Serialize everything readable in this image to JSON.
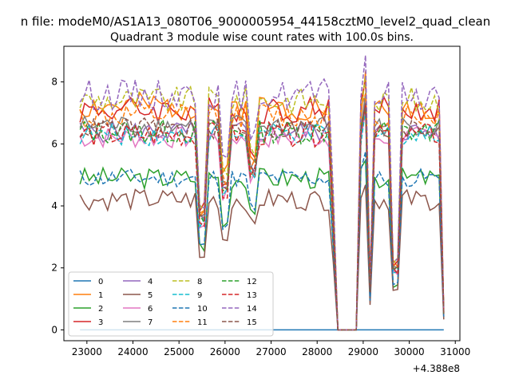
{
  "chart_data": {
    "type": "line",
    "suptitle": "n file: modeM0/AS1A13_080T06_9000005954_44158cztM0_level2_quad_clean",
    "title": "Quadrant 3 module wise count rates with 100.0s bins.",
    "xlabel": "",
    "ylabel": "",
    "offset_text": "+4.388e8",
    "xlim": [
      22500,
      31100
    ],
    "ylim": [
      -0.35,
      9.15
    ],
    "xticks": [
      23000,
      24000,
      25000,
      26000,
      27000,
      28000,
      29000,
      30000,
      31000
    ],
    "yticks": [
      0,
      2,
      4,
      6,
      8
    ],
    "xtick_labels": [
      "23000",
      "24000",
      "25000",
      "26000",
      "27000",
      "28000",
      "29000",
      "30000",
      "31000"
    ],
    "ytick_labels": [
      "0",
      "2",
      "4",
      "6",
      "8"
    ],
    "legend_position": "lower-left",
    "legend_columns": 4,
    "bin_start": 22850,
    "bin_width": 100,
    "series": [
      {
        "name": "0",
        "color": "#1f77b4",
        "style": "solid",
        "level": 0.0,
        "amp": 0.0,
        "seed": 1
      },
      {
        "name": "1",
        "color": "#ff7f0e",
        "style": "solid",
        "level": 7.2,
        "amp": 0.45,
        "seed": 2
      },
      {
        "name": "2",
        "color": "#2ca02c",
        "style": "solid",
        "level": 4.9,
        "amp": 0.35,
        "seed": 3
      },
      {
        "name": "3",
        "color": "#d62728",
        "style": "solid",
        "level": 7.1,
        "amp": 0.45,
        "seed": 4
      },
      {
        "name": "4",
        "color": "#9467bd",
        "style": "solid",
        "level": 6.4,
        "amp": 0.35,
        "seed": 5
      },
      {
        "name": "5",
        "color": "#8c564b",
        "style": "solid",
        "level": 4.2,
        "amp": 0.35,
        "seed": 6
      },
      {
        "name": "6",
        "color": "#e377c2",
        "style": "solid",
        "level": 6.2,
        "amp": 0.35,
        "seed": 7
      },
      {
        "name": "7",
        "color": "#7f7f7f",
        "style": "solid",
        "level": 6.6,
        "amp": 0.35,
        "seed": 8
      },
      {
        "name": "8",
        "color": "#bcbd22",
        "style": "dashed",
        "level": 7.4,
        "amp": 0.45,
        "seed": 9
      },
      {
        "name": "9",
        "color": "#17becf",
        "style": "dashed",
        "level": 6.3,
        "amp": 0.35,
        "seed": 10
      },
      {
        "name": "10",
        "color": "#1f77b4",
        "style": "dashed",
        "level": 4.9,
        "amp": 0.3,
        "seed": 11
      },
      {
        "name": "11",
        "color": "#ff7f0e",
        "style": "dashed",
        "level": 6.9,
        "amp": 0.45,
        "seed": 12
      },
      {
        "name": "12",
        "color": "#2ca02c",
        "style": "dashed",
        "level": 6.4,
        "amp": 0.4,
        "seed": 13
      },
      {
        "name": "13",
        "color": "#d62728",
        "style": "dashed",
        "level": 6.3,
        "amp": 0.4,
        "seed": 14
      },
      {
        "name": "14",
        "color": "#9467bd",
        "style": "dashed",
        "level": 7.6,
        "amp": 0.5,
        "seed": 15
      },
      {
        "name": "15",
        "color": "#8c564b",
        "style": "dashed",
        "level": 6.5,
        "amp": 0.35,
        "seed": 16
      }
    ]
  }
}
